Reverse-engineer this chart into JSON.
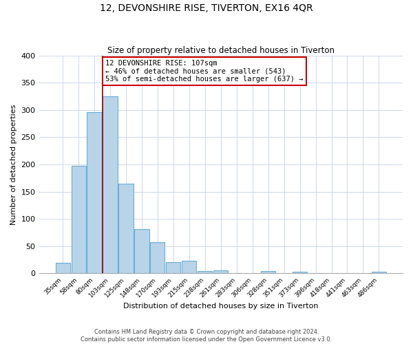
{
  "title": "12, DEVONSHIRE RISE, TIVERTON, EX16 4QR",
  "subtitle": "Size of property relative to detached houses in Tiverton",
  "xlabel": "Distribution of detached houses by size in Tiverton",
  "ylabel": "Number of detached properties",
  "bar_color": "#b8d4e8",
  "bar_edge_color": "#6aadd5",
  "bins": [
    "35sqm",
    "58sqm",
    "80sqm",
    "103sqm",
    "125sqm",
    "148sqm",
    "170sqm",
    "193sqm",
    "215sqm",
    "238sqm",
    "261sqm",
    "283sqm",
    "306sqm",
    "328sqm",
    "351sqm",
    "373sqm",
    "396sqm",
    "418sqm",
    "441sqm",
    "463sqm",
    "486sqm"
  ],
  "values": [
    20,
    197,
    296,
    325,
    165,
    82,
    57,
    21,
    23,
    5,
    6,
    0,
    0,
    4,
    0,
    3,
    0,
    0,
    0,
    0,
    3
  ],
  "property_line_bin_index": 3,
  "annotation_line1": "12 DEVONSHIRE RISE: 107sqm",
  "annotation_line2": "← 46% of detached houses are smaller (543)",
  "annotation_line3": "53% of semi-detached houses are larger (637) →",
  "annotation_box_color": "#ffffff",
  "annotation_box_edge": "#cc0000",
  "property_line_color": "#8b0000",
  "ylim": [
    0,
    400
  ],
  "yticks": [
    0,
    50,
    100,
    150,
    200,
    250,
    300,
    350,
    400
  ],
  "footer1": "Contains HM Land Registry data © Crown copyright and database right 2024.",
  "footer2": "Contains public sector information licensed under the Open Government Licence v3.0.",
  "background_color": "#ffffff",
  "grid_color": "#ccd8e8"
}
